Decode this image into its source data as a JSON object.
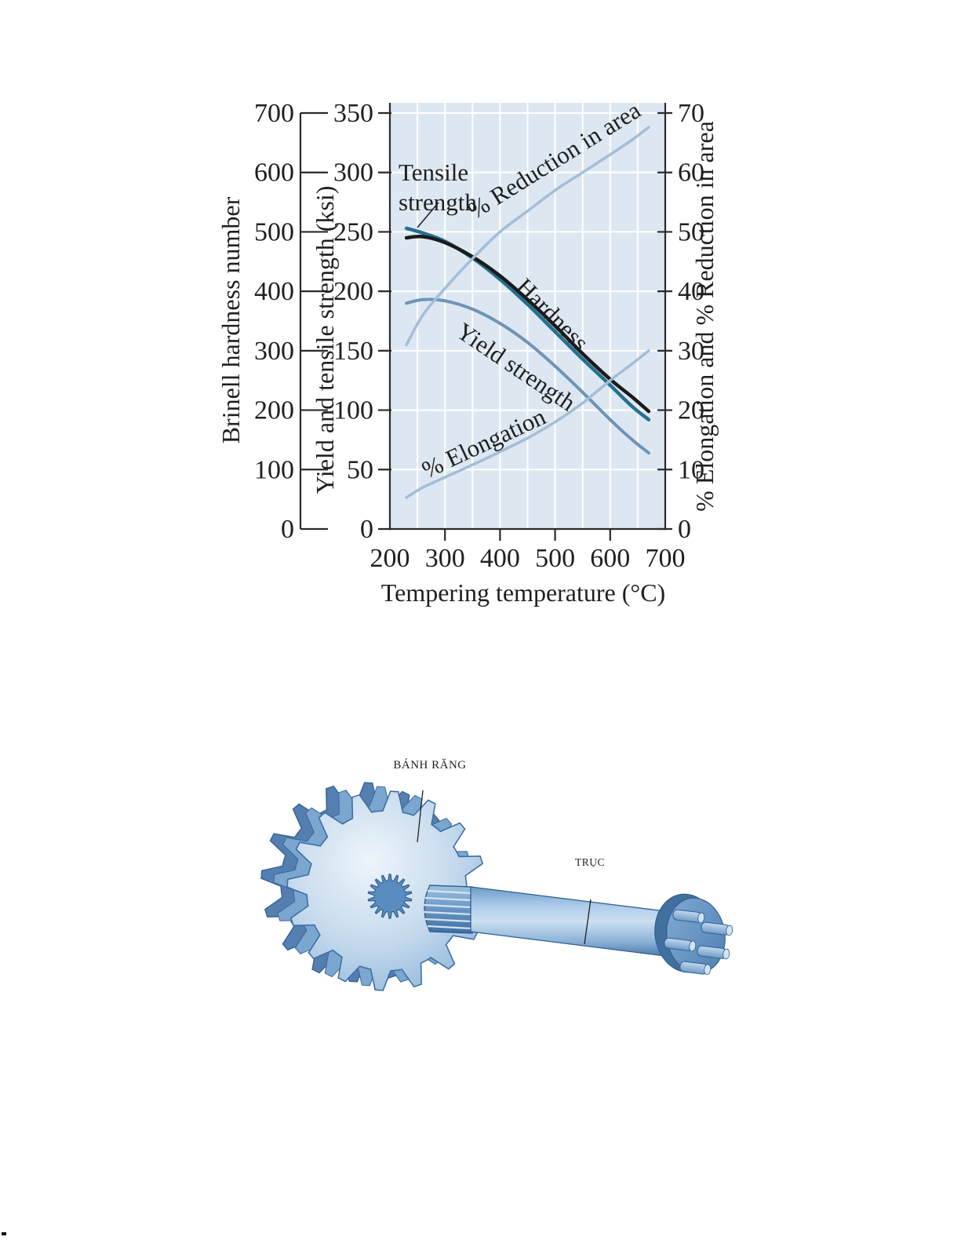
{
  "page": {
    "stray_mark": "."
  },
  "figure_chart": {
    "chart_data": {
      "type": "line",
      "x_axis": {
        "label": "Tempering temperature (°C)",
        "ticks": [
          200,
          300,
          400,
          500,
          600,
          700
        ],
        "range": [
          200,
          700
        ]
      },
      "left_axis_brinell": {
        "label": "Brinell hardness number",
        "ticks": [
          0,
          100,
          200,
          300,
          400,
          500,
          600,
          700
        ],
        "range": [
          0,
          700
        ]
      },
      "left_axis_ksi": {
        "label": "Yield and tensile strength (ksi)",
        "ticks": [
          0,
          50,
          100,
          150,
          200,
          250,
          300,
          350
        ],
        "range": [
          0,
          350
        ]
      },
      "right_axis_percent": {
        "label": "% Elongation and % Reduction in area",
        "ticks": [
          0,
          10,
          20,
          30,
          40,
          50,
          60,
          70
        ],
        "range": [
          0,
          70
        ]
      },
      "grid": true,
      "x": [
        230,
        260,
        300,
        350,
        400,
        450,
        500,
        550,
        600,
        640,
        670
      ],
      "series": [
        {
          "name": "Tensile strength",
          "axis": "ksi",
          "color": "#266f90",
          "width": 4.5,
          "values": [
            253,
            249,
            242,
            228,
            210,
            189,
            166,
            143,
            121,
            103,
            92
          ]
        },
        {
          "name": "Hardness",
          "axis": "brinell",
          "color": "#1b1b1b",
          "width": 4.5,
          "values": [
            490,
            492,
            482,
            458,
            426,
            386,
            342,
            295,
            252,
            222,
            198
          ]
        },
        {
          "name": "Yield strength",
          "axis": "ksi",
          "color": "#6e94b6",
          "width": 4,
          "values": [
            190,
            193,
            192,
            185,
            173,
            157,
            137,
            115,
            92,
            75,
            64
          ]
        },
        {
          "name": "% Reduction in area",
          "axis": "percent",
          "color": "#a2bed7",
          "width": 3.5,
          "values": [
            31,
            36,
            40.5,
            45.5,
            50,
            53.5,
            57,
            60,
            63,
            65.5,
            67.6
          ]
        },
        {
          "name": "% Elongation",
          "axis": "percent",
          "color": "#a2bed7",
          "width": 3.5,
          "values": [
            5.3,
            7,
            8.7,
            10.8,
            13,
            15.3,
            18,
            21.2,
            25,
            27.8,
            30
          ]
        }
      ],
      "curve_labels": {
        "tensile_1": "Tensile",
        "tensile_2": "strength",
        "hardness": "Hardness",
        "yield": "Yield strength",
        "reduction": "% Reduction in area",
        "elongation": "% Elongation"
      },
      "colors": {
        "plot_bg": "#dde7f2",
        "grid": "#ffffff",
        "axis": "#2a2a2a"
      }
    }
  },
  "figure_diagram": {
    "gear_label": "BÁNH RĂNG",
    "shaft_label": "TRỤC",
    "colors": {
      "body": "#7ba6cf",
      "face_light": "#e9f2f9",
      "edge": "#2f5f93"
    }
  }
}
